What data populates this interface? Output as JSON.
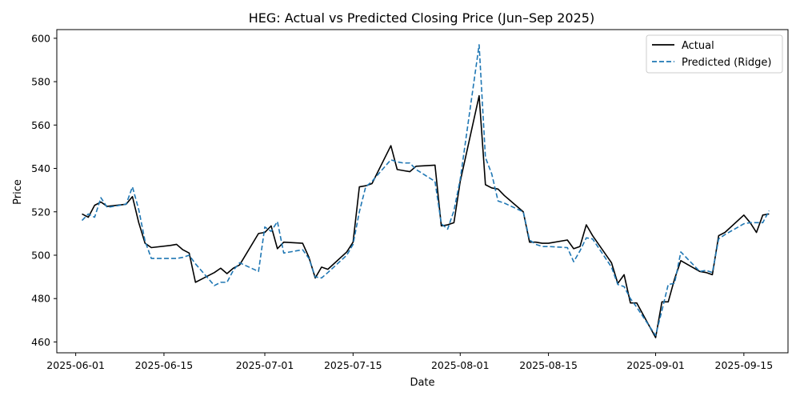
{
  "chart_data": {
    "type": "line",
    "title": "HEG: Actual vs Predicted Closing Price (Jun–Sep 2025)",
    "xlabel": "Date",
    "ylabel": "Price",
    "x_ticks": [
      "2025-06-01",
      "2025-06-15",
      "2025-07-01",
      "2025-07-15",
      "2025-08-01",
      "2025-08-15",
      "2025-09-01",
      "2025-09-15"
    ],
    "y_ticks": [
      460,
      480,
      500,
      520,
      540,
      560,
      580,
      600
    ],
    "xlim": [
      "2025-05-29",
      "2025-09-22"
    ],
    "ylim": [
      455,
      604
    ],
    "grid": false,
    "legend_position": "top-right",
    "colors": {
      "actual": "#000000",
      "predicted": "#1f77b4"
    },
    "series": [
      {
        "name": "Actual",
        "style": "solid",
        "points": [
          [
            "2025-06-02",
            519
          ],
          [
            "2025-06-03",
            517.5
          ],
          [
            "2025-06-04",
            523
          ],
          [
            "2025-06-05",
            524.5
          ],
          [
            "2025-06-06",
            522.5
          ],
          [
            "2025-06-09",
            523.5
          ],
          [
            "2025-06-10",
            527
          ],
          [
            "2025-06-11",
            515
          ],
          [
            "2025-06-12",
            505.5
          ],
          [
            "2025-06-13",
            503.5
          ],
          [
            "2025-06-16",
            504.5
          ],
          [
            "2025-06-17",
            505
          ],
          [
            "2025-06-18",
            502.5
          ],
          [
            "2025-06-19",
            501
          ],
          [
            "2025-06-20",
            487.5
          ],
          [
            "2025-06-23",
            492
          ],
          [
            "2025-06-24",
            494
          ],
          [
            "2025-06-25",
            491.5
          ],
          [
            "2025-06-26",
            494
          ],
          [
            "2025-06-27",
            495.5
          ],
          [
            "2025-06-30",
            510
          ],
          [
            "2025-07-01",
            510.5
          ],
          [
            "2025-07-02",
            513.5
          ],
          [
            "2025-07-03",
            503
          ],
          [
            "2025-07-04",
            506
          ],
          [
            "2025-07-07",
            505.5
          ],
          [
            "2025-07-08",
            499
          ],
          [
            "2025-07-09",
            489.5
          ],
          [
            "2025-07-10",
            494.5
          ],
          [
            "2025-07-11",
            493.5
          ],
          [
            "2025-07-14",
            501.5
          ],
          [
            "2025-07-15",
            506
          ],
          [
            "2025-07-16",
            531.5
          ],
          [
            "2025-07-17",
            532
          ],
          [
            "2025-07-18",
            533
          ],
          [
            "2025-07-21",
            550.5
          ],
          [
            "2025-07-22",
            539.5
          ],
          [
            "2025-07-23",
            539
          ],
          [
            "2025-07-24",
            538.5
          ],
          [
            "2025-07-25",
            541
          ],
          [
            "2025-07-28",
            541.5
          ],
          [
            "2025-07-29",
            513.5
          ],
          [
            "2025-07-30",
            514
          ],
          [
            "2025-07-31",
            515
          ],
          [
            "2025-08-01",
            534
          ],
          [
            "2025-08-04",
            573.5
          ],
          [
            "2025-08-05",
            532.5
          ],
          [
            "2025-08-06",
            531
          ],
          [
            "2025-08-07",
            530.5
          ],
          [
            "2025-08-08",
            527.5
          ],
          [
            "2025-08-11",
            520
          ],
          [
            "2025-08-12",
            506
          ],
          [
            "2025-08-13",
            506
          ],
          [
            "2025-08-14",
            505.5
          ],
          [
            "2025-08-15",
            505.5
          ],
          [
            "2025-08-18",
            507
          ],
          [
            "2025-08-19",
            503
          ],
          [
            "2025-08-20",
            504
          ],
          [
            "2025-08-21",
            514
          ],
          [
            "2025-08-22",
            509
          ],
          [
            "2025-08-25",
            496.5
          ],
          [
            "2025-08-26",
            487
          ],
          [
            "2025-08-27",
            491
          ],
          [
            "2025-08-28",
            478
          ],
          [
            "2025-08-29",
            478
          ],
          [
            "2025-09-01",
            462
          ],
          [
            "2025-09-02",
            478.5
          ],
          [
            "2025-09-03",
            478.5
          ],
          [
            "2025-09-04",
            489
          ],
          [
            "2025-09-05",
            497.5
          ],
          [
            "2025-09-08",
            492.5
          ],
          [
            "2025-09-09",
            492
          ],
          [
            "2025-09-10",
            491
          ],
          [
            "2025-09-11",
            509
          ],
          [
            "2025-09-12",
            510.5
          ],
          [
            "2025-09-15",
            518.5
          ],
          [
            "2025-09-16",
            515
          ],
          [
            "2025-09-17",
            510.5
          ],
          [
            "2025-09-18",
            518.5
          ],
          [
            "2025-09-19",
            519
          ]
        ]
      },
      {
        "name": "Predicted (Ridge)",
        "style": "dashed",
        "points": [
          [
            "2025-06-02",
            516
          ],
          [
            "2025-06-03",
            519
          ],
          [
            "2025-06-04",
            517.5
          ],
          [
            "2025-06-05",
            526.5
          ],
          [
            "2025-06-06",
            522
          ],
          [
            "2025-06-09",
            523.5
          ],
          [
            "2025-06-10",
            531.5
          ],
          [
            "2025-06-11",
            521
          ],
          [
            "2025-06-12",
            506.5
          ],
          [
            "2025-06-13",
            498.5
          ],
          [
            "2025-06-16",
            498.5
          ],
          [
            "2025-06-17",
            498.5
          ],
          [
            "2025-06-18",
            499
          ],
          [
            "2025-06-19",
            500
          ],
          [
            "2025-06-20",
            496
          ],
          [
            "2025-06-23",
            486
          ],
          [
            "2025-06-24",
            487.5
          ],
          [
            "2025-06-25",
            487.5
          ],
          [
            "2025-06-26",
            493
          ],
          [
            "2025-06-27",
            496.5
          ],
          [
            "2025-06-30",
            492.5
          ],
          [
            "2025-07-01",
            513
          ],
          [
            "2025-07-02",
            511
          ],
          [
            "2025-07-03",
            515.5
          ],
          [
            "2025-07-04",
            501
          ],
          [
            "2025-07-07",
            502.5
          ],
          [
            "2025-07-08",
            498.5
          ],
          [
            "2025-07-09",
            490
          ],
          [
            "2025-07-10",
            489.5
          ],
          [
            "2025-07-11",
            492
          ],
          [
            "2025-07-14",
            500
          ],
          [
            "2025-07-15",
            505
          ],
          [
            "2025-07-16",
            520
          ],
          [
            "2025-07-17",
            531.5
          ],
          [
            "2025-07-18",
            534
          ],
          [
            "2025-07-21",
            544
          ],
          [
            "2025-07-22",
            543
          ],
          [
            "2025-07-23",
            542.5
          ],
          [
            "2025-07-24",
            542.5
          ],
          [
            "2025-07-25",
            539.5
          ],
          [
            "2025-07-28",
            534
          ],
          [
            "2025-07-29",
            514.5
          ],
          [
            "2025-07-30",
            512
          ],
          [
            "2025-07-31",
            520.5
          ],
          [
            "2025-08-01",
            535
          ],
          [
            "2025-08-04",
            597
          ],
          [
            "2025-08-05",
            545
          ],
          [
            "2025-08-06",
            537.5
          ],
          [
            "2025-08-07",
            525
          ],
          [
            "2025-08-08",
            524
          ],
          [
            "2025-08-11",
            520
          ],
          [
            "2025-08-12",
            507
          ],
          [
            "2025-08-13",
            505
          ],
          [
            "2025-08-14",
            504
          ],
          [
            "2025-08-15",
            504
          ],
          [
            "2025-08-18",
            503.5
          ],
          [
            "2025-08-19",
            497
          ],
          [
            "2025-08-20",
            502
          ],
          [
            "2025-08-21",
            508
          ],
          [
            "2025-08-22",
            507.5
          ],
          [
            "2025-08-25",
            494.5
          ],
          [
            "2025-08-26",
            486.5
          ],
          [
            "2025-08-27",
            485.5
          ],
          [
            "2025-08-28",
            480
          ],
          [
            "2025-08-29",
            476
          ],
          [
            "2025-09-01",
            463
          ],
          [
            "2025-09-02",
            474.5
          ],
          [
            "2025-09-03",
            486.5
          ],
          [
            "2025-09-04",
            487
          ],
          [
            "2025-09-05",
            501.5
          ],
          [
            "2025-09-08",
            492.5
          ],
          [
            "2025-09-09",
            493
          ],
          [
            "2025-09-10",
            492
          ],
          [
            "2025-09-11",
            507.5
          ],
          [
            "2025-09-12",
            509.5
          ],
          [
            "2025-09-15",
            514.5
          ],
          [
            "2025-09-16",
            515
          ],
          [
            "2025-09-17",
            515
          ],
          [
            "2025-09-18",
            515
          ],
          [
            "2025-09-19",
            520.5
          ]
        ]
      }
    ]
  }
}
